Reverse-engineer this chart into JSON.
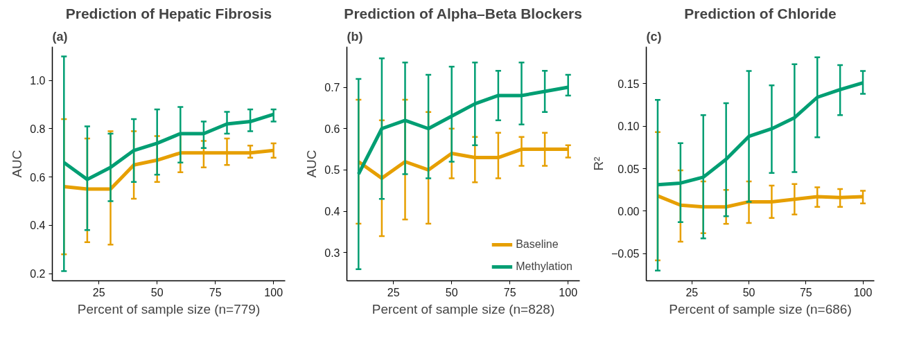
{
  "chart_data": [
    {
      "type": "line",
      "title": "Prediction of Hepatic Fibrosis",
      "xlabel": "Percent of sample size (n=779)",
      "ylabel": "AUC",
      "annotations": [
        "(a)"
      ],
      "x": [
        10,
        20,
        30,
        40,
        50,
        60,
        70,
        80,
        90,
        100
      ],
      "xlim": [
        5,
        105
      ],
      "xticks": [
        25,
        50,
        75,
        100
      ],
      "ylim": [
        0.17,
        1.14
      ],
      "yticks": [
        {
          "value": 0.2,
          "label": "0.2"
        },
        {
          "value": 0.4,
          "label": "0.4"
        },
        {
          "value": 0.6,
          "label": "0.6"
        },
        {
          "value": 0.8,
          "label": "0.8"
        },
        {
          "value": 1.0,
          "label": "1.0"
        }
      ],
      "grid": false,
      "legend": false,
      "marker": "none",
      "line_style": "solid",
      "series": [
        {
          "color": "#e69f00",
          "values": [
            0.56,
            0.55,
            0.55,
            0.65,
            0.67,
            0.7,
            0.7,
            0.7,
            0.7,
            0.71
          ],
          "errors": [
            [
              0.28,
              0.84
            ],
            [
              0.33,
              0.76
            ],
            [
              0.32,
              0.79
            ],
            [
              0.51,
              0.79
            ],
            [
              0.58,
              0.77
            ],
            [
              0.62,
              0.78
            ],
            [
              0.64,
              0.75
            ],
            [
              0.65,
              0.76
            ],
            [
              0.68,
              0.73
            ],
            [
              0.68,
              0.74
            ]
          ]
        },
        {
          "color": "#009e73",
          "values": [
            0.66,
            0.59,
            0.64,
            0.71,
            0.74,
            0.78,
            0.78,
            0.82,
            0.83,
            0.86
          ],
          "errors": [
            [
              0.21,
              1.1
            ],
            [
              0.38,
              0.81
            ],
            [
              0.5,
              0.78
            ],
            [
              0.58,
              0.84
            ],
            [
              0.61,
              0.88
            ],
            [
              0.66,
              0.89
            ],
            [
              0.72,
              0.83
            ],
            [
              0.78,
              0.87
            ],
            [
              0.79,
              0.88
            ],
            [
              0.83,
              0.88
            ]
          ]
        }
      ]
    },
    {
      "type": "line",
      "title": "Prediction of Alpha–Beta Blockers",
      "xlabel": "Percent of sample size (n=828)",
      "ylabel": "AUC",
      "annotations": [
        "(b)"
      ],
      "x": [
        10,
        20,
        30,
        40,
        50,
        60,
        70,
        80,
        90,
        100
      ],
      "xlim": [
        5,
        105
      ],
      "xticks": [
        25,
        50,
        75,
        100
      ],
      "ylim": [
        0.232,
        0.798
      ],
      "yticks": [
        {
          "value": 0.3,
          "label": "0.3"
        },
        {
          "value": 0.4,
          "label": "0.4"
        },
        {
          "value": 0.5,
          "label": "0.5"
        },
        {
          "value": 0.6,
          "label": "0.6"
        },
        {
          "value": 0.7,
          "label": "0.7"
        }
      ],
      "grid": false,
      "legend": "bottom right",
      "marker": "none",
      "line_style": "solid",
      "series": [
        {
          "name": "Baseline",
          "color": "#e69f00",
          "values": [
            0.52,
            0.48,
            0.52,
            0.5,
            0.54,
            0.53,
            0.53,
            0.55,
            0.55,
            0.55
          ],
          "errors": [
            [
              0.37,
              0.67
            ],
            [
              0.34,
              0.62
            ],
            [
              0.38,
              0.67
            ],
            [
              0.37,
              0.64
            ],
            [
              0.48,
              0.6
            ],
            [
              0.47,
              0.58
            ],
            [
              0.48,
              0.59
            ],
            [
              0.51,
              0.58
            ],
            [
              0.51,
              0.59
            ],
            [
              0.53,
              0.56
            ]
          ]
        },
        {
          "name": "Methylation",
          "color": "#009e73",
          "values": [
            0.49,
            0.6,
            0.62,
            0.6,
            0.63,
            0.66,
            0.68,
            0.68,
            0.69,
            0.7
          ],
          "errors": [
            [
              0.26,
              0.72
            ],
            [
              0.43,
              0.77
            ],
            [
              0.49,
              0.76
            ],
            [
              0.48,
              0.73
            ],
            [
              0.52,
              0.75
            ],
            [
              0.56,
              0.76
            ],
            [
              0.62,
              0.74
            ],
            [
              0.61,
              0.76
            ],
            [
              0.64,
              0.74
            ],
            [
              0.68,
              0.73
            ]
          ]
        }
      ]
    },
    {
      "type": "line",
      "title": "Prediction of Chloride",
      "xlabel": "Percent of sample size (n=686)",
      "ylabel": "R²",
      "annotations": [
        "(c)"
      ],
      "x": [
        10,
        20,
        30,
        40,
        50,
        60,
        70,
        80,
        90,
        100
      ],
      "xlim": [
        5,
        105
      ],
      "xticks": [
        25,
        50,
        75,
        100
      ],
      "ylim": [
        -0.082,
        0.1935
      ],
      "yticks": [
        {
          "value": -0.05,
          "label": "−0.05"
        },
        {
          "value": 0.0,
          "label": "0.00"
        },
        {
          "value": 0.05,
          "label": "0.05"
        },
        {
          "value": 0.1,
          "label": "0.10"
        },
        {
          "value": 0.15,
          "label": "0.15"
        }
      ],
      "grid": false,
      "legend": false,
      "marker": "none",
      "line_style": "solid",
      "series": [
        {
          "color": "#e69f00",
          "values": [
            0.018,
            0.007,
            0.005,
            0.005,
            0.011,
            0.011,
            0.014,
            0.017,
            0.016,
            0.017
          ],
          "errors": [
            [
              -0.058,
              0.093
            ],
            [
              -0.036,
              0.048
            ],
            [
              -0.026,
              0.035
            ],
            [
              -0.015,
              0.025
            ],
            [
              -0.014,
              0.035
            ],
            [
              -0.008,
              0.03
            ],
            [
              -0.004,
              0.032
            ],
            [
              0.005,
              0.028
            ],
            [
              0.005,
              0.026
            ],
            [
              0.009,
              0.024
            ]
          ]
        },
        {
          "color": "#009e73",
          "values": [
            0.031,
            0.033,
            0.04,
            0.061,
            0.088,
            0.097,
            0.11,
            0.134,
            0.143,
            0.151
          ],
          "errors": [
            [
              -0.07,
              0.131
            ],
            [
              -0.013,
              0.08
            ],
            [
              -0.032,
              0.113
            ],
            [
              -0.006,
              0.127
            ],
            [
              0.011,
              0.165
            ],
            [
              0.045,
              0.148
            ],
            [
              0.046,
              0.173
            ],
            [
              0.087,
              0.181
            ],
            [
              0.113,
              0.172
            ],
            [
              0.138,
              0.165
            ]
          ]
        }
      ]
    }
  ]
}
